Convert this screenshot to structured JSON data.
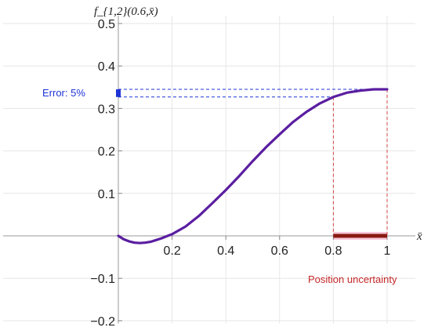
{
  "chart_data": {
    "type": "line",
    "title": "",
    "ylabel": "f_{1,2}(0.6,x̄)",
    "xlabel": "x̄",
    "xlim": [
      -0.38,
      1.09
    ],
    "ylim": [
      -0.2,
      0.5
    ],
    "x_ticks": [
      0.2,
      0.4,
      0.6,
      0.8,
      1
    ],
    "x_tick_labels": [
      "0.2",
      "0.4",
      "0.6",
      "0.8",
      "1"
    ],
    "y_ticks": [
      -0.2,
      -0.1,
      0.1,
      0.2,
      0.3,
      0.4,
      0.5
    ],
    "y_tick_labels": [
      "−0.2",
      "−0.1",
      "0.1",
      "0.2",
      "0.3",
      "0.4",
      "0.5"
    ],
    "grid": true,
    "series": [
      {
        "color": "#5a1ea0",
        "x": [
          0,
          0.02,
          0.04,
          0.06,
          0.08,
          0.1,
          0.12,
          0.14,
          0.16,
          0.18,
          0.2,
          0.25,
          0.3,
          0.35,
          0.4,
          0.45,
          0.5,
          0.55,
          0.6,
          0.65,
          0.7,
          0.75,
          0.8,
          0.85,
          0.9,
          0.95,
          1
        ],
        "y": [
          0,
          -0.008,
          -0.013,
          -0.016,
          -0.017,
          -0.016,
          -0.014,
          -0.01,
          -0.006,
          -0.001,
          0.004,
          0.022,
          0.047,
          0.077,
          0.108,
          0.141,
          0.176,
          0.209,
          0.239,
          0.268,
          0.292,
          0.312,
          0.327,
          0.337,
          0.342,
          0.345,
          0.345
        ]
      }
    ],
    "annotations": {
      "error_label": "Error: 5%",
      "error_range": [
        0.327,
        0.345
      ],
      "uncertainty_label": "Position uncertainty",
      "uncertainty_range": [
        0.8,
        1
      ]
    },
    "colors": {
      "curve": "#5a1ea0",
      "error": "#1f33d6",
      "uncertainty": "#8b1a12",
      "uncertainty_band": "#f7c9dc",
      "guides_red": "#d64545"
    }
  }
}
